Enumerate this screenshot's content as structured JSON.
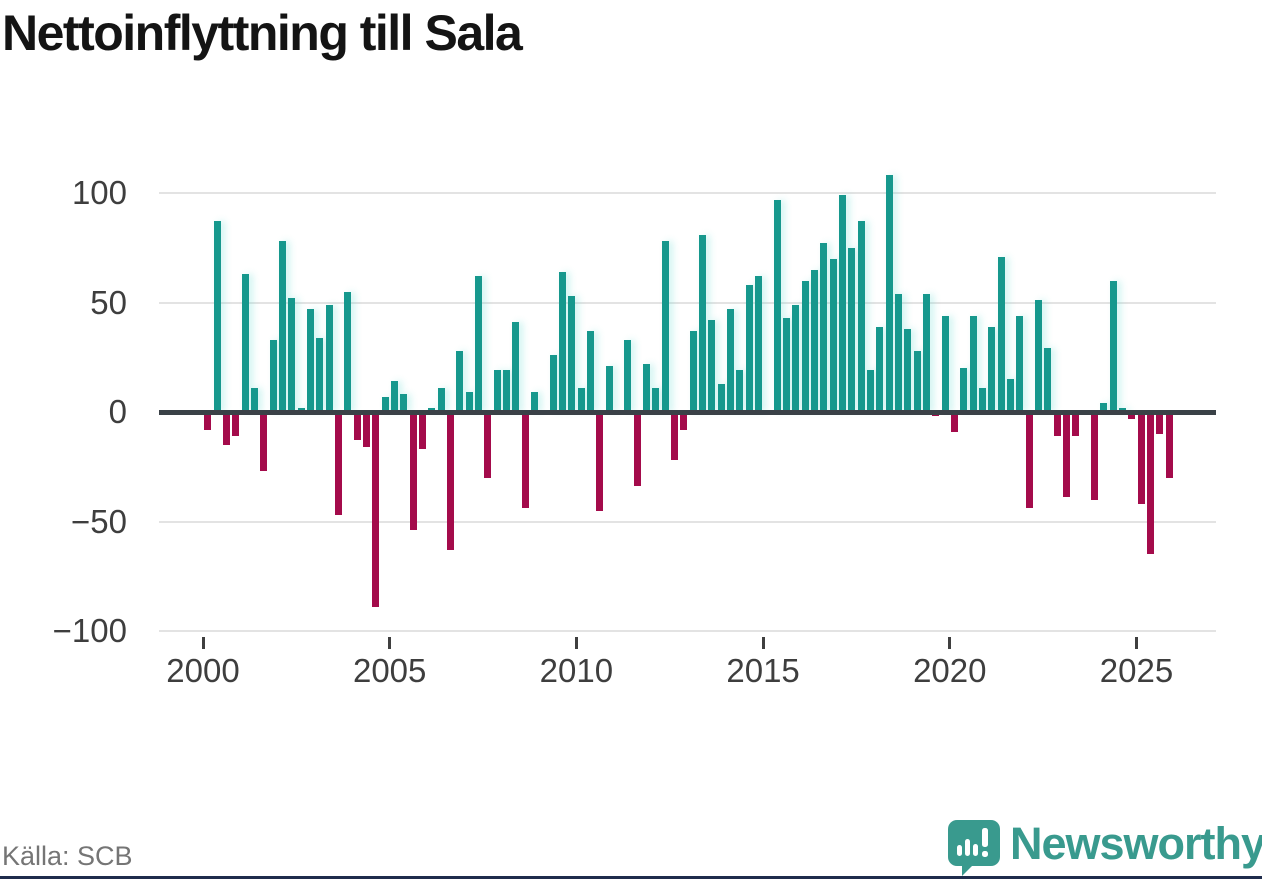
{
  "title": "Nettoinflyttning till Sala",
  "source": "Källa: SCB",
  "brand": {
    "name": "Newsworthy",
    "color": "#399a8e"
  },
  "colors": {
    "positive_bar": "#16988d",
    "negative_bar": "#a40b4b",
    "zero_axis": "#3a4147",
    "gridline": "#e3e3e3",
    "axis_label": "#3e3e3e",
    "title_text": "#141414",
    "source_text": "#757575",
    "bottom_border": "#1f2c4c"
  },
  "chart_data": {
    "type": "bar",
    "title": "Nettoinflyttning till Sala",
    "period": "quarterly",
    "start": "2000Q1",
    "end": "2025Q4",
    "start_year": 2000,
    "quarters_per_year": 4,
    "x_ticks": [
      2000,
      2005,
      2010,
      2015,
      2020,
      2025
    ],
    "y_ticks": [
      100,
      50,
      0,
      -50,
      -100
    ],
    "y_tick_labels": [
      "100",
      "50",
      "0",
      "−50",
      "−100"
    ],
    "ylim": [
      -110,
      120
    ],
    "grid": true,
    "legend": false,
    "values": [
      -8,
      87,
      -15,
      -11,
      63,
      11,
      -27,
      33,
      78,
      52,
      2,
      47,
      34,
      49,
      -47,
      55,
      -13,
      -16,
      -89,
      7,
      14,
      8,
      -54,
      -17,
      2,
      11,
      -63,
      28,
      9,
      62,
      -30,
      19,
      19,
      41,
      -44,
      9,
      0,
      26,
      64,
      53,
      11,
      37,
      -45,
      21,
      0,
      33,
      -34,
      22,
      11,
      78,
      -22,
      -8,
      37,
      81,
      42,
      13,
      47,
      19,
      58,
      62,
      0,
      97,
      43,
      49,
      60,
      65,
      77,
      70,
      99,
      75,
      87,
      19,
      39,
      108,
      54,
      38,
      28,
      54,
      -2,
      44,
      -9,
      20,
      44,
      11,
      39,
      71,
      15,
      44,
      -44,
      51,
      29,
      -11,
      -39,
      -11,
      0,
      -40,
      4,
      60,
      2,
      -3,
      -42,
      -65,
      -10,
      -30
    ]
  }
}
